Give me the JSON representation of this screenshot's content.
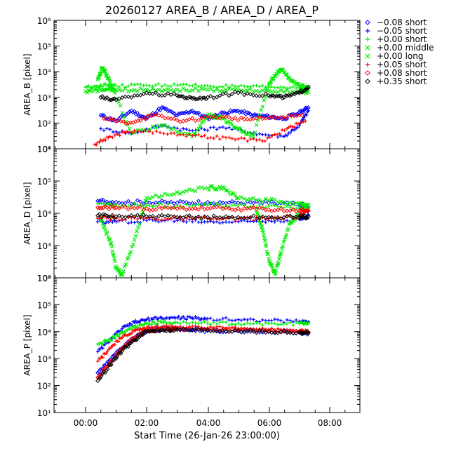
{
  "chart_data": {
    "type": "scatter",
    "title": "20260127 AREA_B / AREA_D / AREA_P",
    "xlabel": "Start Time (26-Jan-26 23:00:00)",
    "x_ticks": [
      "00:00",
      "02:00",
      "04:00",
      "06:00",
      "08:00"
    ],
    "x_range_hours": [
      -1.0,
      9.0
    ],
    "y_scale": "log",
    "legend_placement": "right",
    "legend": [
      {
        "label": "−0.08 short",
        "symbol": "diamond",
        "color": "#0000ff"
      },
      {
        "label": "−0.05 short",
        "symbol": "plus",
        "color": "#0000ff"
      },
      {
        "label": "+0.00 short",
        "symbol": "plus",
        "color": "#00ee00"
      },
      {
        "label": "+0.00 middle",
        "symbol": "x",
        "color": "#00ee00"
      },
      {
        "label": "+0.00 long",
        "symbol": "x",
        "color": "#00ee00"
      },
      {
        "label": "+0.05 short",
        "symbol": "plus",
        "color": "#ff0000"
      },
      {
        "label": "+0.08 short",
        "symbol": "diamond",
        "color": "#ff0000"
      },
      {
        "label": "+0.35 short",
        "symbol": "diamond",
        "color": "#000000"
      }
    ],
    "panels": [
      {
        "ylabel": "AREA_B [pixel]",
        "ylim_log10": [
          1,
          6
        ],
        "ytick_exponents": [
          "1",
          "2",
          "3",
          "4",
          "5",
          "6"
        ],
        "series": [
          {
            "name": "−0.08 short",
            "x": [
              0.5,
              1.0,
              1.5,
              2.0,
              2.5,
              3.0,
              3.5,
              4.0,
              4.5,
              5.0,
              5.5,
              6.0,
              6.5,
              7.0,
              7.3
            ],
            "y": [
              200,
              120,
              300,
              150,
              400,
              200,
              300,
              150,
              250,
              300,
              200,
              180,
              150,
              250,
              400
            ]
          },
          {
            "name": "−0.05 short",
            "x": [
              0.5,
              1.5,
              2.5,
              3.5,
              4.5,
              5.5,
              6.5,
              7.0,
              7.3
            ],
            "y": [
              60,
              40,
              80,
              50,
              70,
              40,
              30,
              80,
              300
            ]
          },
          {
            "name": "+0.00 short",
            "x": [
              0.0,
              0.5,
              1.0,
              2.0,
              3.0,
              4.0,
              5.0,
              6.0,
              7.0,
              7.3
            ],
            "y": [
              2500,
              3000,
              2800,
              3000,
              3000,
              2800,
              2600,
              2500,
              2400,
              2200
            ]
          },
          {
            "name": "+0.00 middle",
            "x": [
              0.0,
              0.5,
              1.0,
              2.0,
              3.0,
              4.0,
              5.0,
              6.0,
              7.0,
              7.3
            ],
            "y": [
              1700,
              2000,
              1900,
              2000,
              2000,
              2000,
              1900,
              1800,
              1700,
              1600
            ]
          },
          {
            "name": "+0.00 long",
            "x": [
              0.4,
              0.55,
              0.7,
              0.9,
              1.5,
              2.5,
              3.5,
              4.0,
              4.5,
              5.0,
              5.5,
              6.0,
              6.2,
              6.45,
              6.7,
              7.0,
              7.3
            ],
            "y": [
              5000,
              14000,
              7000,
              2000,
              40,
              80,
              30,
              200,
              150,
              60,
              30,
              3000,
              7000,
              12000,
              5000,
              3000,
              2500
            ]
          },
          {
            "name": "+0.05 short",
            "x": [
              0.3,
              0.8,
              1.6,
              2.8,
              3.8,
              4.8,
              5.8,
              6.6,
              7.2
            ],
            "y": [
              15,
              30,
              50,
              40,
              30,
              25,
              20,
              60,
              120
            ]
          },
          {
            "name": "+0.08 short",
            "x": [
              0.6,
              1.4,
              2.2,
              3.2,
              4.2,
              5.2,
              6.2,
              7.1
            ],
            "y": [
              150,
              100,
              200,
              120,
              180,
              140,
              160,
              200
            ]
          },
          {
            "name": "+0.35 short",
            "x": [
              0.5,
              1.0,
              2.0,
              3.0,
              3.5,
              4.0,
              5.0,
              6.0,
              6.5,
              7.0,
              7.3
            ],
            "y": [
              1000,
              800,
              1500,
              1200,
              900,
              1000,
              1500,
              1200,
              1000,
              1500,
              2500
            ]
          }
        ]
      },
      {
        "ylabel": "AREA_D [pixel]",
        "ylim_log10": [
          2,
          6
        ],
        "ytick_exponents": [
          "2",
          "3",
          "4",
          "5",
          "6"
        ],
        "series": [
          {
            "name": "−0.08 short",
            "x": [
              0.4,
              1.0,
              2.0,
              3.0,
              4.0,
              5.0,
              6.0,
              7.0,
              7.3
            ],
            "y": [
              24000,
              22000,
              22000,
              21000,
              22000,
              21000,
              21000,
              18000,
              16000
            ]
          },
          {
            "name": "−0.05 short",
            "x": [
              0.4,
              1.0,
              2.0,
              3.0,
              4.0,
              5.0,
              6.0,
              7.0,
              7.3
            ],
            "y": [
              5500,
              5500,
              6000,
              6000,
              5500,
              5500,
              6000,
              6500,
              9000
            ]
          },
          {
            "name": "+0.00 short",
            "x": [
              0.4,
              1.0,
              2.0,
              3.0,
              4.0,
              5.0,
              6.0,
              7.0,
              7.3
            ],
            "y": [
              20000,
              18000,
              18000,
              17000,
              18000,
              17000,
              17000,
              15000,
              14000
            ]
          },
          {
            "name": "+0.00 middle",
            "x": [
              0.5,
              0.8,
              1.0,
              1.2,
              1.6,
              2.0,
              3.0,
              4.0,
              4.5,
              5.0,
              6.0,
              7.0,
              7.3
            ],
            "y": [
              6000,
              1500,
              200,
              130,
              1500,
              30000,
              45000,
              60000,
              65000,
              30000,
              25000,
              20000,
              18000
            ]
          },
          {
            "name": "+0.00 long",
            "x": [
              5.6,
              5.8,
              6.0,
              6.2,
              6.4,
              6.7,
              7.0
            ],
            "y": [
              12000,
              3000,
              400,
              130,
              600,
              5000,
              9000
            ]
          },
          {
            "name": "+0.05 short",
            "x": [
              0.4,
              1.0,
              2.0,
              3.0,
              4.0,
              5.0,
              6.0,
              7.0,
              7.3
            ],
            "y": [
              7000,
              7000,
              7000,
              6800,
              6800,
              6600,
              6800,
              8000,
              12000
            ]
          },
          {
            "name": "+0.08 short",
            "x": [
              0.4,
              1.0,
              2.0,
              3.0,
              4.0,
              5.0,
              6.0,
              7.0,
              7.3
            ],
            "y": [
              15000,
              15000,
              14000,
              14000,
              14000,
              14000,
              13000,
              12000,
              12000
            ]
          },
          {
            "name": "+0.35 short",
            "x": [
              0.4,
              1.0,
              2.0,
              3.0,
              4.0,
              5.0,
              6.0,
              7.0,
              7.3
            ],
            "y": [
              8500,
              8000,
              8000,
              7500,
              7500,
              7500,
              7500,
              7500,
              8000
            ]
          }
        ]
      },
      {
        "ylabel": "AREA_P [pixel]",
        "ylim_log10": [
          1,
          6
        ],
        "ytick_exponents": [
          "1",
          "2",
          "3",
          "4",
          "5",
          "6"
        ],
        "series": [
          {
            "name": "−0.08 short",
            "x": [
              0.4,
              0.8,
              1.2,
              1.6,
              2.0,
              2.5,
              3.0,
              3.5,
              4.0,
              5.0,
              6.0,
              7.0,
              7.3
            ],
            "y": [
              300,
              900,
              2500,
              6000,
              11000,
              13000,
              13000,
              12000,
              11000,
              10500,
              10000,
              9500,
              9000
            ]
          },
          {
            "name": "−0.05 short",
            "x": [
              0.4,
              0.8,
              1.2,
              1.6,
              2.0,
              2.5,
              3.0,
              3.5,
              4.0,
              5.0,
              6.0,
              7.0,
              7.3
            ],
            "y": [
              1800,
              5000,
              13000,
              22000,
              28000,
              32000,
              33000,
              32000,
              30000,
              28000,
              26000,
              24000,
              23000
            ]
          },
          {
            "name": "+0.00 short",
            "x": [
              0.4,
              0.8,
              1.2,
              1.6,
              2.0,
              2.5,
              3.0,
              4.0,
              5.0,
              6.0,
              7.0,
              7.3
            ],
            "y": [
              3500,
              5000,
              9000,
              15000,
              20000,
              22000,
              22000,
              21000,
              20000,
              20000,
              20000,
              20000
            ]
          },
          {
            "name": "+0.05 short",
            "x": [
              0.4,
              0.8,
              1.2,
              1.6,
              2.0,
              2.5,
              3.0,
              4.0,
              5.0,
              6.0,
              7.0,
              7.3
            ],
            "y": [
              800,
              2500,
              6000,
              11000,
              14000,
              15000,
              15000,
              14000,
              13000,
              12000,
              11000,
              10000
            ]
          },
          {
            "name": "+0.08 short",
            "x": [
              0.4,
              0.8,
              1.2,
              1.6,
              2.0,
              2.5,
              3.0,
              4.0,
              5.0,
              6.0,
              7.0,
              7.3
            ],
            "y": [
              200,
              700,
              2500,
              6000,
              11000,
              13000,
              13000,
              12500,
              12000,
              11000,
              10000,
              9500
            ]
          },
          {
            "name": "+0.35 short",
            "x": [
              0.4,
              0.8,
              1.2,
              1.6,
              2.0,
              2.5,
              3.0,
              4.0,
              5.0,
              6.0,
              7.0,
              7.3
            ],
            "y": [
              150,
              600,
              2000,
              5000,
              10000,
              12000,
              12000,
              11500,
              11000,
              10000,
              9500,
              9000
            ]
          }
        ]
      }
    ]
  }
}
